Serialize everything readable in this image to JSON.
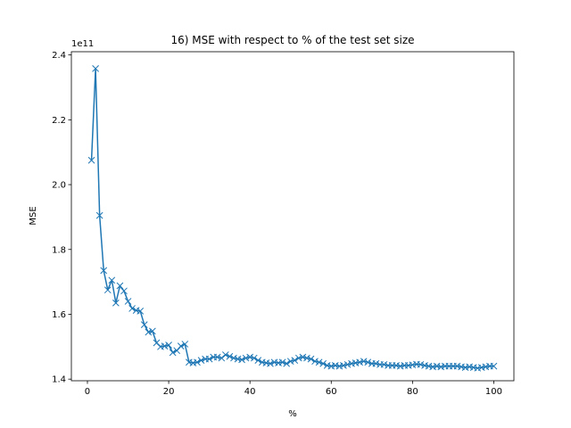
{
  "chart_data": {
    "type": "line",
    "title": "16) MSE with respect to % of the test set size",
    "xlabel": "%",
    "ylabel": "MSE",
    "y_offset_label": "1e11",
    "y_scale": 100000000000.0,
    "xlim": [
      -3.95,
      104.95
    ],
    "ylim": [
      1.395,
      2.41
    ],
    "xticks": [
      0,
      20,
      40,
      60,
      80,
      100
    ],
    "yticks": [
      1.4,
      1.6,
      1.8,
      2.0,
      2.2,
      2.4
    ],
    "ytick_labels": [
      "1.4",
      "1.6",
      "1.8",
      "2.0",
      "2.2",
      "2.4"
    ],
    "grid": false,
    "line_color": "#1f77b4",
    "marker": "x",
    "series": [
      {
        "x": [
          1,
          2,
          3,
          4,
          5,
          6,
          7,
          8,
          9,
          10,
          11,
          12,
          13,
          14,
          15,
          16,
          17,
          18,
          19,
          20,
          21,
          22,
          23,
          24,
          25,
          26,
          27,
          28,
          29,
          30,
          31,
          32,
          33,
          34,
          35,
          36,
          37,
          38,
          39,
          40,
          41,
          42,
          43,
          44,
          45,
          46,
          47,
          48,
          49,
          50,
          51,
          52,
          53,
          54,
          55,
          56,
          57,
          58,
          59,
          60,
          61,
          62,
          63,
          64,
          65,
          66,
          67,
          68,
          69,
          70,
          71,
          72,
          73,
          74,
          75,
          76,
          77,
          78,
          79,
          80,
          81,
          82,
          83,
          84,
          85,
          86,
          87,
          88,
          89,
          90,
          91,
          92,
          93,
          94,
          95,
          96,
          97,
          98,
          99,
          100
        ],
        "y": [
          2.075,
          2.358,
          1.905,
          1.735,
          1.675,
          1.705,
          1.635,
          1.688,
          1.672,
          1.64,
          1.618,
          1.612,
          1.61,
          1.568,
          1.545,
          1.548,
          1.512,
          1.5,
          1.502,
          1.505,
          1.482,
          1.488,
          1.502,
          1.508,
          1.452,
          1.45,
          1.452,
          1.458,
          1.462,
          1.462,
          1.468,
          1.468,
          1.465,
          1.475,
          1.47,
          1.465,
          1.462,
          1.46,
          1.465,
          1.468,
          1.465,
          1.458,
          1.452,
          1.45,
          1.448,
          1.452,
          1.45,
          1.452,
          1.448,
          1.455,
          1.458,
          1.465,
          1.468,
          1.465,
          1.462,
          1.455,
          1.452,
          1.448,
          1.442,
          1.44,
          1.442,
          1.44,
          1.442,
          1.445,
          1.448,
          1.45,
          1.452,
          1.455,
          1.452,
          1.448,
          1.448,
          1.445,
          1.445,
          1.442,
          1.442,
          1.442,
          1.44,
          1.442,
          1.442,
          1.444,
          1.446,
          1.445,
          1.442,
          1.44,
          1.438,
          1.44,
          1.438,
          1.44,
          1.44,
          1.44,
          1.44,
          1.438,
          1.436,
          1.438,
          1.436,
          1.434,
          1.436,
          1.438,
          1.44,
          1.44
        ]
      }
    ]
  }
}
